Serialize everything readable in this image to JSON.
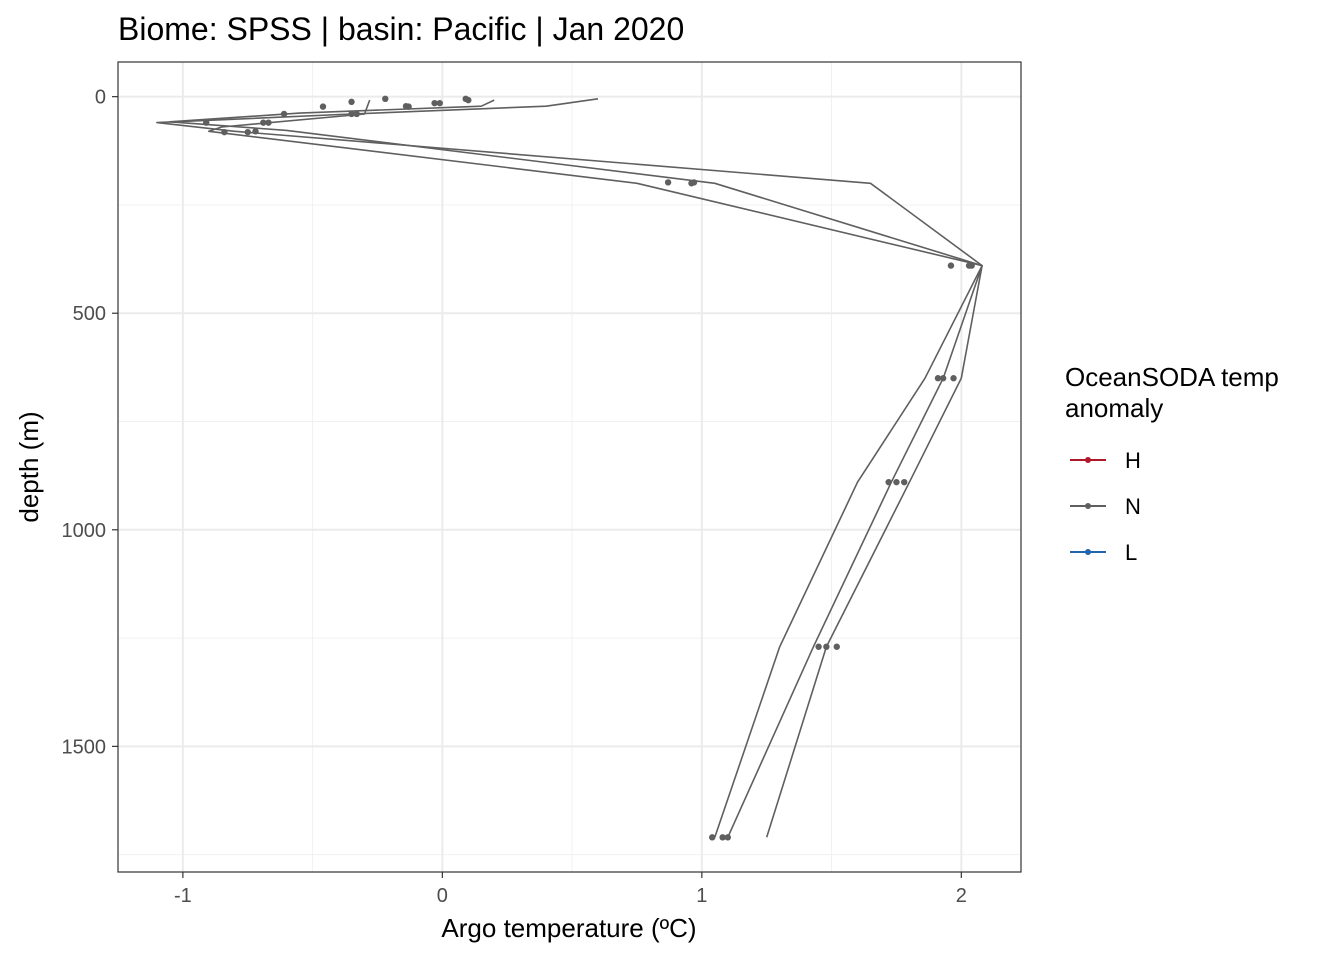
{
  "chart_data": {
    "type": "line",
    "title": "Biome: SPSS | basin: Pacific  | Jan 2020",
    "xlabel": "Argo temperature (ºC)",
    "ylabel": "depth (m)",
    "xlim": [
      -1.25,
      2.23
    ],
    "ylim": [
      1790,
      -80
    ],
    "y_reversed": true,
    "grid": true,
    "x_ticks": [
      -1,
      0,
      1,
      2
    ],
    "x_tick_labels": [
      "-1",
      "0",
      "1",
      "2"
    ],
    "y_ticks": [
      0,
      500,
      1000,
      1500
    ],
    "y_tick_labels": [
      "0",
      "500",
      "1000",
      "1500"
    ],
    "legend": {
      "title_lines": [
        "OceanSODA temp",
        "anomaly"
      ],
      "position": "right",
      "items": [
        {
          "label": "H",
          "color": "#b2182b"
        },
        {
          "label": "N",
          "color": "#5f5f5f"
        },
        {
          "label": "L",
          "color": "#2166ac"
        }
      ]
    },
    "series": [
      {
        "category": "N",
        "color": "#5f5f5f",
        "line": [
          {
            "x": 0.6,
            "y": 5
          },
          {
            "x": 0.4,
            "y": 22
          },
          {
            "x": -0.35,
            "y": 40
          },
          {
            "x": -1.1,
            "y": 60
          },
          {
            "x": -0.8,
            "y": 80
          },
          {
            "x": 1.65,
            "y": 200
          },
          {
            "x": 2.08,
            "y": 390
          },
          {
            "x": 2.0,
            "y": 650
          },
          {
            "x": 1.8,
            "y": 890
          },
          {
            "x": 1.48,
            "y": 1270
          },
          {
            "x": 1.25,
            "y": 1710
          }
        ],
        "points": [
          {
            "x": -0.22,
            "y": 5
          },
          {
            "x": -0.13,
            "y": 23
          },
          {
            "x": -0.33,
            "y": 40
          },
          {
            "x": -0.91,
            "y": 60
          },
          {
            "x": -0.75,
            "y": 82
          },
          {
            "x": 0.97,
            "y": 198
          },
          {
            "x": 2.03,
            "y": 390
          },
          {
            "x": 1.93,
            "y": 650
          },
          {
            "x": 1.75,
            "y": 890
          },
          {
            "x": 1.45,
            "y": 1270
          },
          {
            "x": 1.04,
            "y": 1710
          }
        ]
      },
      {
        "category": "N",
        "color": "#5f5f5f",
        "line": [
          {
            "x": 0.2,
            "y": 8
          },
          {
            "x": 0.15,
            "y": 22
          },
          {
            "x": -0.55,
            "y": 38
          },
          {
            "x": -1.05,
            "y": 58
          },
          {
            "x": -0.6,
            "y": 78
          },
          {
            "x": 1.05,
            "y": 200
          },
          {
            "x": 2.08,
            "y": 390
          },
          {
            "x": 1.93,
            "y": 650
          },
          {
            "x": 1.73,
            "y": 890
          },
          {
            "x": 1.43,
            "y": 1270
          },
          {
            "x": 1.1,
            "y": 1710
          }
        ],
        "points": [
          {
            "x": 0.1,
            "y": 8
          },
          {
            "x": -0.03,
            "y": 15
          },
          {
            "x": -0.35,
            "y": 40
          },
          {
            "x": -0.67,
            "y": 60
          },
          {
            "x": -0.72,
            "y": 80
          },
          {
            "x": 0.87,
            "y": 198
          },
          {
            "x": 1.96,
            "y": 390
          },
          {
            "x": 1.91,
            "y": 650
          },
          {
            "x": 1.72,
            "y": 890
          },
          {
            "x": 1.48,
            "y": 1270
          },
          {
            "x": 1.08,
            "y": 1710
          }
        ]
      },
      {
        "category": "N",
        "color": "#5f5f5f",
        "line": [
          {
            "x": -0.28,
            "y": 8
          },
          {
            "x": -0.3,
            "y": 40
          },
          {
            "x": -0.85,
            "y": 70
          },
          {
            "x": -0.9,
            "y": 80
          },
          {
            "x": 0.75,
            "y": 200
          },
          {
            "x": 2.08,
            "y": 390
          },
          {
            "x": 1.86,
            "y": 650
          },
          {
            "x": 1.6,
            "y": 890
          },
          {
            "x": 1.3,
            "y": 1270
          },
          {
            "x": 1.05,
            "y": 1710
          }
        ],
        "points": [
          {
            "x": -0.35,
            "y": 12
          },
          {
            "x": -0.46,
            "y": 23
          },
          {
            "x": -0.61,
            "y": 40
          },
          {
            "x": -0.69,
            "y": 60
          },
          {
            "x": -0.84,
            "y": 82
          },
          {
            "x": 0.96,
            "y": 200
          },
          {
            "x": 2.04,
            "y": 390
          },
          {
            "x": 1.97,
            "y": 650
          },
          {
            "x": 1.78,
            "y": 890
          },
          {
            "x": 1.52,
            "y": 1270
          },
          {
            "x": 1.1,
            "y": 1710
          }
        ]
      },
      {
        "category": "N",
        "color": "#5f5f5f",
        "line": [],
        "points": [
          {
            "x": 0.09,
            "y": 5
          },
          {
            "x": -0.01,
            "y": 15
          },
          {
            "x": -0.14,
            "y": 22
          }
        ]
      }
    ]
  }
}
